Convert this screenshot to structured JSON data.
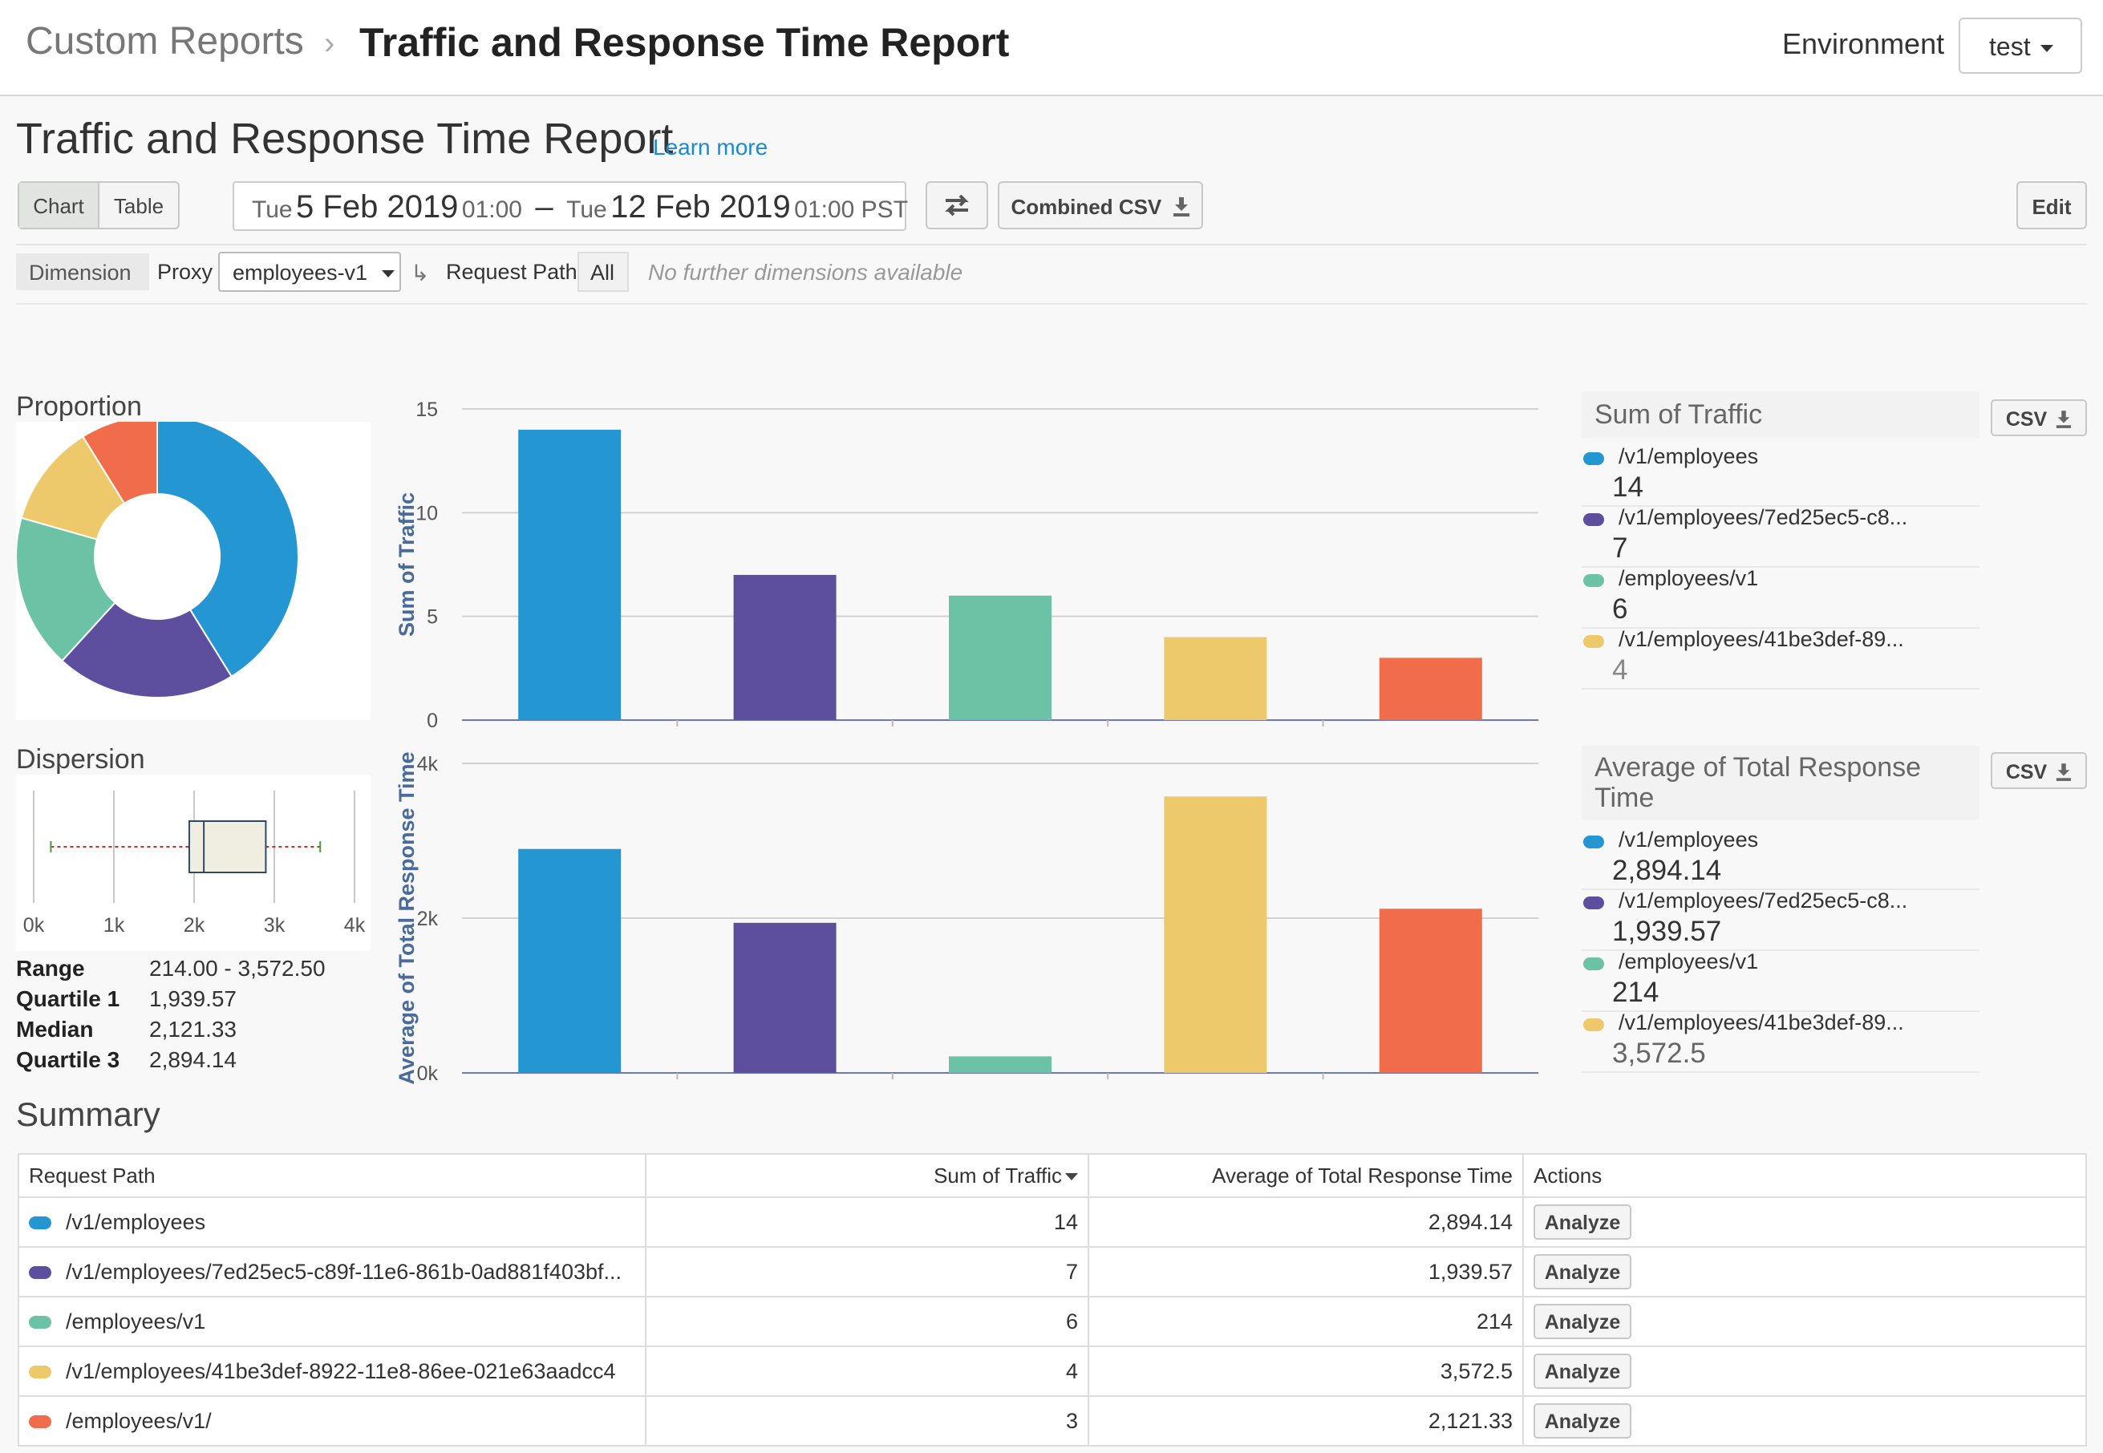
{
  "header": {
    "breadcrumb_root": "Custom Reports",
    "breadcrumb_separator": "›",
    "breadcrumb_current": "Traffic and Response Time Report",
    "environment_label": "Environment",
    "environment_value": "test"
  },
  "page": {
    "title": "Traffic and Response Time Report",
    "learn_more": "Learn more"
  },
  "toolbar": {
    "chart_label": "Chart",
    "table_label": "Table",
    "active_view": "Chart",
    "start_day": "Tue",
    "start_date": "5 Feb 2019",
    "start_time": "01:00",
    "range_dash": "–",
    "end_day": "Tue",
    "end_date": "12 Feb 2019",
    "end_time": "01:00 PST",
    "swap_icon": "swap-arrows-icon",
    "combined_csv_label": "Combined CSV",
    "download_icon": "download-icon",
    "edit_label": "Edit"
  },
  "dimensions": {
    "label": "Dimension",
    "proxy_label": "Proxy",
    "proxy_value": "employees-v1",
    "request_path_label": "Request Path",
    "request_path_value": "All",
    "note": "No further dimensions available"
  },
  "proportion": {
    "title": "Proportion"
  },
  "dispersion": {
    "title": "Dispersion",
    "axis_ticks": [
      "0k",
      "1k",
      "2k",
      "3k",
      "4k"
    ],
    "stats": [
      {
        "label": "Range",
        "value": "214.00 - 3,572.50"
      },
      {
        "label": "Quartile 1",
        "value": "1,939.57"
      },
      {
        "label": "Median",
        "value": "2,121.33"
      },
      {
        "label": "Quartile 3",
        "value": "2,894.14"
      }
    ],
    "min": 214.0,
    "q1": 1939.57,
    "median": 2121.33,
    "q3": 2894.14,
    "max": 3572.5
  },
  "colors": [
    "#2496d2",
    "#5e4e9e",
    "#6cc2a4",
    "#edc96c",
    "#f06c4a"
  ],
  "chart_data": [
    {
      "type": "bar",
      "ylabel": "Sum of Traffic",
      "categories": [
        "/v1/employees",
        "/v1/employees/7ed25ec5-c89f-11e6-861b-0ad881f403bf…",
        "/employees/v1",
        "/v1/employees/41be3def-8922-11e8-86ee-021e63aadcc4",
        "/employees/v1/"
      ],
      "values": [
        14,
        7,
        6,
        4,
        3
      ],
      "ylim": [
        0,
        15
      ],
      "yticks": [
        0,
        5,
        10,
        15
      ],
      "ytick_labels": [
        "0",
        "5",
        "10",
        "15"
      ],
      "grid": true
    },
    {
      "type": "bar",
      "ylabel": "Average of Total Response Time",
      "categories": [
        "/v1/employees",
        "/v1/employees/7ed25ec5-c89f-11e6-861b-0ad881f403bf…",
        "/employees/v1",
        "/v1/employees/41be3def-8922-11e8-86ee-021e63aadcc4",
        "/employees/v1/"
      ],
      "values": [
        2894.14,
        1939.57,
        214,
        3572.5,
        2121.33
      ],
      "ylim": [
        0,
        4000
      ],
      "yticks": [
        0,
        2000,
        4000
      ],
      "ytick_labels": [
        "0k",
        "2k",
        "4k"
      ],
      "grid": true
    },
    {
      "type": "pie",
      "title": "Proportion",
      "categories": [
        "/v1/employees",
        "/v1/employees/7ed25ec5-c89f-11e6-861b-0ad881f403bf…",
        "/employees/v1",
        "/v1/employees/41be3def-8922-11e8-86ee-021e63aadcc4",
        "/employees/v1/"
      ],
      "values": [
        14,
        7,
        6,
        4,
        3
      ]
    }
  ],
  "legends": {
    "traffic": {
      "title": "Sum of Traffic",
      "csv_label": "CSV",
      "items": [
        {
          "label": "/v1/employees",
          "value": "14"
        },
        {
          "label": "/v1/employees/7ed25ec5-c8...",
          "value": "7"
        },
        {
          "label": "/employees/v1",
          "value": "6"
        },
        {
          "label": "/v1/employees/41be3def-89...",
          "value": "4"
        }
      ]
    },
    "response": {
      "title_line1": "Average of Total Response",
      "title_line2": "Time",
      "csv_label": "CSV",
      "items": [
        {
          "label": "/v1/employees",
          "value": "2,894.14"
        },
        {
          "label": "/v1/employees/7ed25ec5-c8...",
          "value": "1,939.57"
        },
        {
          "label": "/employees/v1",
          "value": "214"
        },
        {
          "label": "/v1/employees/41be3def-89...",
          "value": "3,572.5"
        }
      ]
    }
  },
  "summary": {
    "title": "Summary",
    "columns": [
      "Request Path",
      "Sum of Traffic",
      "Average of Total Response Time",
      "Actions"
    ],
    "sort_icon": "sort-desc-icon",
    "rows": [
      {
        "path": "/v1/employees",
        "traffic": "14",
        "response": "2,894.14",
        "action": "Analyze"
      },
      {
        "path": "/v1/employees/7ed25ec5-c89f-11e6-861b-0ad881f403bf...",
        "traffic": "7",
        "response": "1,939.57",
        "action": "Analyze"
      },
      {
        "path": "/employees/v1",
        "traffic": "6",
        "response": "214",
        "action": "Analyze"
      },
      {
        "path": "/v1/employees/41be3def-8922-11e8-86ee-021e63aadcc4",
        "traffic": "4",
        "response": "3,572.5",
        "action": "Analyze"
      },
      {
        "path": "/employees/v1/",
        "traffic": "3",
        "response": "2,121.33",
        "action": "Analyze"
      }
    ]
  }
}
